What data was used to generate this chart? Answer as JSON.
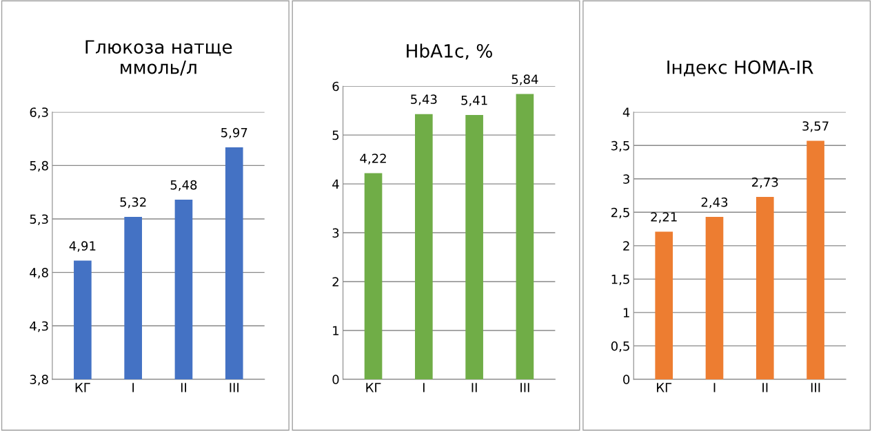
{
  "chart_data": [
    {
      "type": "bar",
      "title": "Глюкоза натще\nммоль/л",
      "categories": [
        "КГ",
        "I",
        "II",
        "III"
      ],
      "values": [
        4.91,
        5.32,
        5.48,
        5.97
      ],
      "value_labels": [
        "4,91",
        "5,32",
        "5,48",
        "5,97"
      ],
      "color": "#4472c4",
      "ylim": [
        3.8,
        6.3
      ],
      "yticks": [
        {
          "value": 3.8,
          "label": "3,8"
        },
        {
          "value": 4.3,
          "label": "4,3"
        },
        {
          "value": 4.8,
          "label": "4,8"
        },
        {
          "value": 5.3,
          "label": "5,3"
        },
        {
          "value": 5.8,
          "label": "5,8"
        },
        {
          "value": 6.3,
          "label": "6,3"
        }
      ],
      "grid": "y"
    },
    {
      "type": "bar",
      "title": "HbA1c, %",
      "categories": [
        "КГ",
        "I",
        "II",
        "III"
      ],
      "values": [
        4.22,
        5.43,
        5.41,
        5.84
      ],
      "value_labels": [
        "4,22",
        "5,43",
        "5,41",
        "5,84"
      ],
      "color": "#70ad47",
      "ylim": [
        0,
        6
      ],
      "yticks": [
        0,
        1,
        2,
        3,
        4,
        5,
        6
      ],
      "grid": "y"
    },
    {
      "type": "bar",
      "title": "Індекс HOMA-IR",
      "categories": [
        "КГ",
        "I",
        "II",
        "III"
      ],
      "values": [
        2.21,
        2.43,
        2.73,
        3.57
      ],
      "value_labels": [
        "2,21",
        "2,43",
        "2,73",
        "3,57"
      ],
      "color": "#ed7d31",
      "ylim": [
        0,
        4
      ],
      "yticks": [
        0,
        {
          "value": 0.5,
          "label": "0,5"
        },
        1,
        {
          "value": 1.5,
          "label": "1,5"
        },
        2,
        {
          "value": 2.5,
          "label": "2,5"
        },
        3,
        {
          "value": 3.5,
          "label": "3,5"
        },
        4
      ],
      "grid": "y"
    }
  ]
}
